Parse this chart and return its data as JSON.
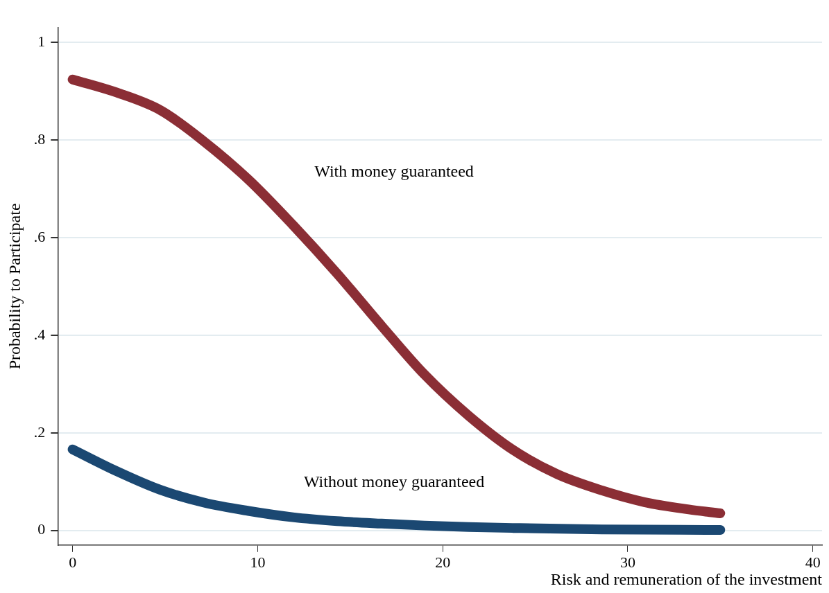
{
  "chart_data": {
    "type": "line",
    "xlabel": "Risk and remuneration of the investment",
    "ylabel": "Probability to Participate",
    "xlim": [
      -0.8,
      40.5
    ],
    "xticks": [
      0,
      10,
      20,
      30,
      40
    ],
    "ylim": [
      -0.03,
      1.03
    ],
    "yticks": [
      {
        "value": 0,
        "label": "0"
      },
      {
        "value": 0.2,
        "label": ".2"
      },
      {
        "value": 0.4,
        "label": ".4"
      },
      {
        "value": 0.6,
        "label": ".6"
      },
      {
        "value": 0.8,
        "label": ".8"
      },
      {
        "value": 1,
        "label": "1"
      }
    ],
    "grid": "y",
    "legend": false,
    "marker": "none",
    "line_style": "solid",
    "series": [
      {
        "name": "With money guaranteed",
        "color": "#8b2e35",
        "x": [
          0,
          2.4,
          4.75,
          7.1,
          9.5,
          11.9,
          14.3,
          16.7,
          19,
          21.4,
          23.8,
          26.2,
          28.6,
          30.9,
          33.3,
          35
        ],
        "values": [
          0.924,
          0.897,
          0.861,
          0.797,
          0.719,
          0.626,
          0.526,
          0.419,
          0.32,
          0.235,
          0.165,
          0.115,
          0.082,
          0.058,
          0.043,
          0.035
        ]
      },
      {
        "name": "Without money guaranteed",
        "color": "#1b4872",
        "x": [
          0,
          2.4,
          4.75,
          7.1,
          9.5,
          11.9,
          14.3,
          16.7,
          19,
          21.4,
          23.8,
          28.6,
          35
        ],
        "values": [
          0.166,
          0.121,
          0.083,
          0.057,
          0.04,
          0.027,
          0.019,
          0.014,
          0.01,
          0.007,
          0.005,
          0.002,
          0.001
        ]
      }
    ]
  }
}
